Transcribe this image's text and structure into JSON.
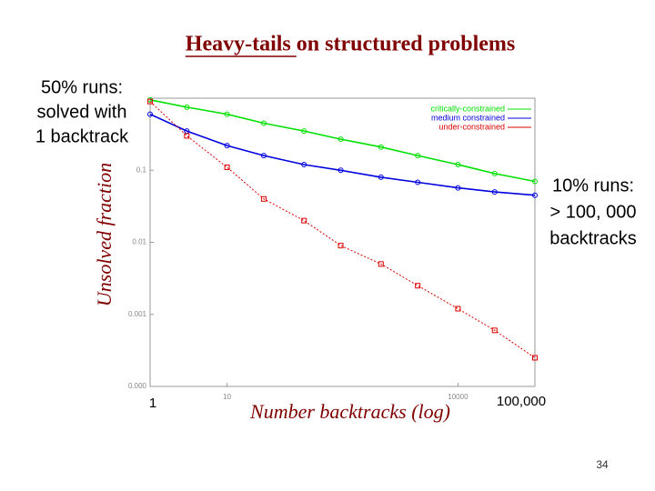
{
  "chart_data": {
    "type": "line",
    "title": "Heavy-tails on structured problems",
    "x_label": "Number backtracks (log)",
    "y_label": "Unsolved fraction",
    "xscale": "log",
    "yscale": "log",
    "x": [
      1,
      3,
      10,
      30,
      100,
      300,
      1000,
      3000,
      10000,
      30000,
      100000
    ],
    "series": [
      {
        "name": "critically-constrained",
        "color": "#00e000",
        "values": [
          0.95,
          0.75,
          0.6,
          0.45,
          0.35,
          0.27,
          0.21,
          0.16,
          0.12,
          0.09,
          0.07
        ]
      },
      {
        "name": "medium constrained",
        "color": "#0000dd",
        "values": [
          0.6,
          0.35,
          0.22,
          0.16,
          0.12,
          0.1,
          0.08,
          0.068,
          0.057,
          0.05,
          0.045
        ]
      },
      {
        "name": "under-constrained",
        "color": "#dd0000",
        "values": [
          0.9,
          0.3,
          0.11,
          0.04,
          0.02,
          0.009,
          0.005,
          0.0025,
          0.0012,
          0.0006,
          0.00025
        ]
      }
    ],
    "xlim": [
      1,
      100000
    ],
    "ylim": [
      0.0001,
      1
    ],
    "xticks": [
      10,
      10000
    ],
    "yticks": [
      0.1,
      0.01,
      0.001,
      {
        "value": 0.0001,
        "label": "0.000"
      }
    ],
    "legend": "upper right",
    "annotations": [
      {
        "lines": [
          "50% runs:",
          "solved with",
          "1 backtrack"
        ]
      },
      {
        "lines": [
          "10% runs:",
          "> 100, 000",
          "backtracks"
        ]
      },
      {
        "lines": [
          "1"
        ]
      },
      {
        "lines": [
          "100,000"
        ]
      }
    ]
  },
  "page_number": "34"
}
